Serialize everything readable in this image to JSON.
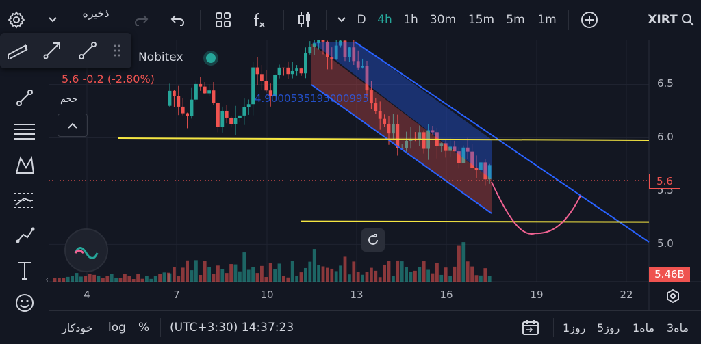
{
  "top_bar": {
    "symbol": "XIRT",
    "save_label": "ذخیره",
    "timeframes": [
      "D",
      "4h",
      "1h",
      "30m",
      "15m",
      "5m",
      "1m"
    ],
    "active_timeframe": "4h"
  },
  "legend": {
    "exchange": "Nobitex",
    "price_line": "5.6  -0.2 (-2.80%)",
    "volume_label": "حجم",
    "overlay_value": "4.9000535193000995"
  },
  "price_axis": {
    "ticks": [
      "6.5",
      "6.0",
      "5.5",
      "5.0"
    ],
    "current_price": "5.6",
    "volume_badge": "5.46B"
  },
  "time_axis": {
    "ticks": [
      "4",
      "7",
      "10",
      "13",
      "16",
      "19",
      "22"
    ]
  },
  "bottom_bar": {
    "auto_label": "خودکار",
    "log_label": "log",
    "percent_label": "%",
    "time_label": "(UTC+3:30) 14:37:23",
    "ranges": [
      "1روز",
      "5روز",
      "1ماه",
      "3ماه"
    ]
  },
  "colors": {
    "background": "#131722",
    "up": "#26a69a",
    "down": "#ef5350",
    "active_timeframe": "#26a69a",
    "trendline": "#f5e642",
    "channel": "#2962ff",
    "projection": "#f06292"
  },
  "chart_data": {
    "type": "candlestick",
    "title": "",
    "xlabel": "",
    "ylabel": "",
    "x_ticks": [
      "4",
      "7",
      "10",
      "13",
      "16",
      "19",
      "22"
    ],
    "y_ticks": [
      5.0,
      5.5,
      6.0,
      6.5
    ],
    "ylim": [
      4.65,
      6.92
    ],
    "last_price": 5.6,
    "change": -0.2,
    "change_percent": -2.8,
    "horizontal_levels": [
      5.99,
      5.21
    ],
    "grid": true
  }
}
